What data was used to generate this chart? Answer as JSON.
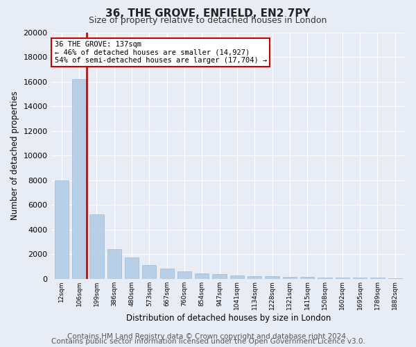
{
  "title": "36, THE GROVE, ENFIELD, EN2 7PY",
  "subtitle": "Size of property relative to detached houses in London",
  "xlabel": "Distribution of detached houses by size in London",
  "ylabel": "Number of detached properties",
  "categories": [
    "12sqm",
    "106sqm",
    "199sqm",
    "386sqm",
    "480sqm",
    "573sqm",
    "667sqm",
    "760sqm",
    "854sqm",
    "947sqm",
    "1041sqm",
    "1134sqm",
    "1228sqm",
    "1321sqm",
    "1415sqm",
    "1508sqm",
    "1602sqm",
    "1695sqm",
    "1789sqm",
    "1882sqm"
  ],
  "values": [
    8000,
    16200,
    5200,
    2400,
    1700,
    1100,
    800,
    600,
    450,
    350,
    280,
    220,
    180,
    150,
    120,
    100,
    90,
    75,
    65,
    55
  ],
  "bar_color": "#b8cfe8",
  "bar_edge_color": "#9ab8d8",
  "property_line_color": "#aa0000",
  "annotation_line1": "36 THE GROVE: 137sqm",
  "annotation_line2": "← 46% of detached houses are smaller (14,927)",
  "annotation_line3": "54% of semi-detached houses are larger (17,704) →",
  "annotation_box_color": "#ffffff",
  "annotation_box_edge": "#cc0000",
  "ylim": [
    0,
    20000
  ],
  "yticks": [
    0,
    2000,
    4000,
    6000,
    8000,
    10000,
    12000,
    14000,
    16000,
    18000,
    20000
  ],
  "footer1": "Contains HM Land Registry data © Crown copyright and database right 2024.",
  "footer2": "Contains public sector information licensed under the Open Government Licence v3.0.",
  "bg_color": "#e8edf5",
  "plot_bg_color": "#e8edf5",
  "title_fontsize": 11,
  "subtitle_fontsize": 9,
  "footer_fontsize": 7.5,
  "annotation_fontsize": 7.5
}
